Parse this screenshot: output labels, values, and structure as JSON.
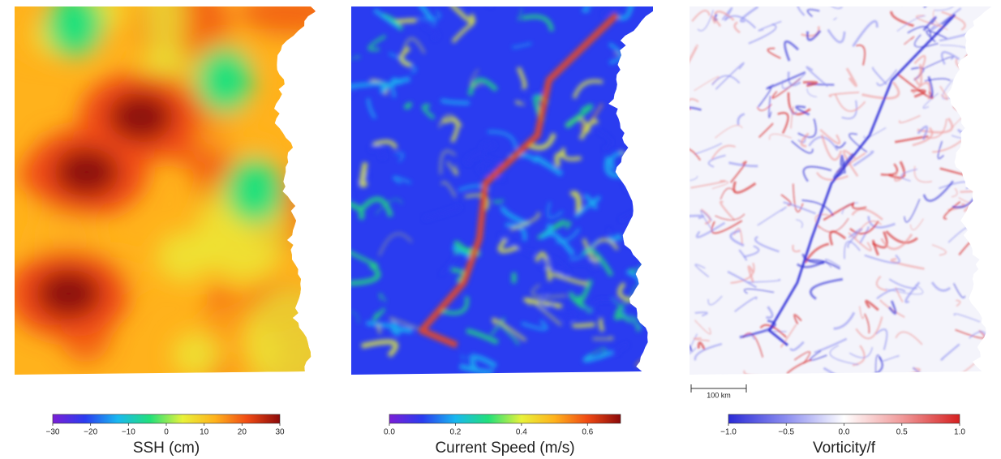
{
  "chart_data": [
    {
      "type": "colorbar",
      "label": "SSH (cm)",
      "xlim": [
        -30,
        30
      ],
      "xticks": [
        {
          "value": -30,
          "label": "−30"
        },
        {
          "value": -20,
          "label": "−20"
        },
        {
          "value": -10,
          "label": "−10"
        },
        0,
        10,
        20,
        30
      ],
      "colors": [
        "#7a1fd6",
        "#2a3cf0",
        "#19b8f0",
        "#22e07a",
        "#e8f23a",
        "#ffb21c",
        "#f04a14",
        "#8c0a0a"
      ]
    },
    {
      "type": "colorbar",
      "label": "Current Speed (m/s)",
      "xlim": [
        0,
        0.7
      ],
      "xticks": [
        {
          "value": 0,
          "label": "0.0"
        },
        0.2,
        0.4,
        0.6
      ],
      "colors": [
        "#7a1fd6",
        "#2a3cf0",
        "#19b8f0",
        "#22e07a",
        "#e8f23a",
        "#ffb21c",
        "#f04a14",
        "#8c0a0a"
      ]
    },
    {
      "type": "colorbar",
      "label": "Vorticity/f",
      "xlim": [
        -1,
        1
      ],
      "xticks": [
        {
          "value": -1,
          "label": "−1.0"
        },
        {
          "value": -0.5,
          "label": "−0.5"
        },
        {
          "value": 0,
          "label": "0.0"
        },
        0.5,
        {
          "value": 1,
          "label": "1.0"
        }
      ],
      "colors": [
        "#2b2bd6",
        "#8c8ef0",
        "#ffffff",
        "#f09a9a",
        "#d62020"
      ],
      "annotation": "100 km"
    }
  ]
}
